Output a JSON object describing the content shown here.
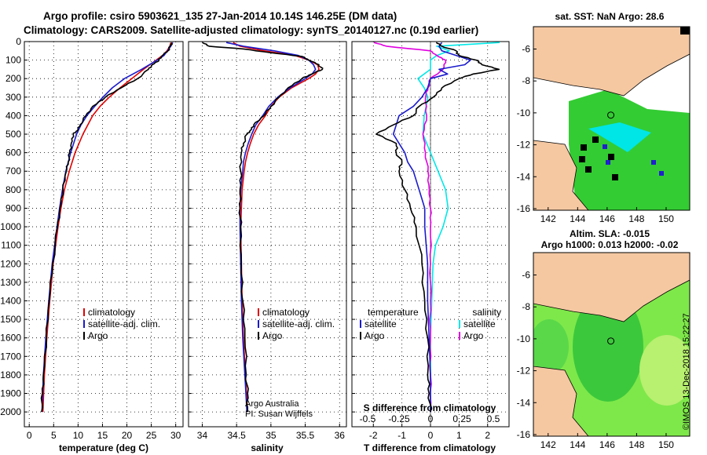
{
  "title_line1": "Argo profile: csiro 5903621_135 27-Jan-2014 10.14S 146.25E (DM data)",
  "title_line2": "Climatology: CARS2009. Satellite-adjusted climatology: synTS_20140127.nc (0.19d earlier)",
  "credit": "©IMOS 13-Dec-2018 15:22:27",
  "colors": {
    "climatology": "#e00000",
    "satellite": "#1a1acc",
    "argo": "#000000",
    "sal_clim": "#e000e0",
    "sal_sat": "#00e8e8",
    "land": "#f5c8a2",
    "ocean_green": "#33cc33",
    "sla_green": "#7ee84a"
  },
  "chart_data": [
    {
      "type": "line",
      "name": "temperature",
      "xlabel": "temperature (deg C)",
      "xlim": [
        -1,
        31.5
      ],
      "ylim": [
        0,
        2080
      ],
      "xticks": [
        "0",
        "5",
        "10",
        "15",
        "20",
        "25",
        "30"
      ],
      "xtick_values": [
        0,
        5,
        10,
        15,
        20,
        25,
        30
      ],
      "yticks": [
        "0",
        "100",
        "200",
        "300",
        "400",
        "500",
        "600",
        "700",
        "800",
        "900",
        "1000",
        "1100",
        "1200",
        "1300",
        "1400",
        "1500",
        "1600",
        "1700",
        "1800",
        "1900",
        "2000"
      ],
      "ytick_values": [
        0,
        100,
        200,
        300,
        400,
        500,
        600,
        700,
        800,
        900,
        1000,
        1100,
        1200,
        1300,
        1400,
        1500,
        1600,
        1700,
        1800,
        1900,
        2000
      ],
      "legend": [
        "climatology",
        "satellite-adj. clim.",
        "Argo"
      ],
      "series": [
        {
          "name": "climatology",
          "pressure": [
            5,
            25,
            50,
            75,
            100,
            150,
            200,
            250,
            300,
            350,
            400,
            500,
            600,
            700,
            800,
            900,
            1000,
            1200,
            1400,
            1600,
            1800,
            2000
          ],
          "values": [
            29.0,
            28.8,
            28.2,
            27.3,
            26.0,
            23.4,
            21.0,
            18.6,
            16.4,
            14.5,
            13.0,
            11.0,
            9.4,
            8.2,
            7.2,
            6.5,
            5.9,
            4.9,
            4.2,
            3.6,
            3.1,
            2.8
          ]
        },
        {
          "name": "satellite-adj. clim.",
          "pressure": [
            5,
            25,
            50,
            75,
            100,
            150,
            200,
            250,
            300,
            350,
            400,
            450,
            500,
            600,
            700,
            800,
            900,
            1000,
            1200,
            1400,
            1600,
            1800,
            2000
          ],
          "values": [
            29.4,
            29.0,
            28.3,
            27.6,
            26.2,
            23.0,
            19.5,
            17.0,
            15.1,
            13.4,
            11.8,
            10.6,
            9.7,
            8.5,
            7.5,
            6.8,
            6.2,
            5.7,
            4.7,
            4.0,
            3.4,
            2.9,
            2.6
          ]
        },
        {
          "name": "Argo",
          "pressure": [
            5,
            25,
            50,
            75,
            100,
            125,
            150,
            200,
            250,
            300,
            350,
            400,
            450,
            480,
            500,
            550,
            600,
            650,
            700,
            800,
            900,
            1000,
            1200,
            1400,
            1600,
            1800,
            1900,
            2000
          ],
          "values": [
            29.2,
            28.9,
            28.4,
            27.3,
            26.6,
            25.2,
            24.4,
            22.2,
            18.8,
            15.6,
            13.0,
            11.6,
            10.4,
            9.9,
            9.0,
            8.6,
            8.3,
            8.0,
            7.6,
            6.9,
            6.3,
            5.8,
            4.8,
            4.1,
            3.5,
            2.9,
            2.7,
            2.5
          ]
        }
      ]
    },
    {
      "type": "line",
      "name": "salinity",
      "xlabel": "salinity",
      "xlim": [
        33.8,
        36.1
      ],
      "ylim": [
        0,
        2080
      ],
      "xticks": [
        "34",
        "34.5",
        "35",
        "35.5",
        "36"
      ],
      "xtick_values": [
        34,
        34.5,
        35,
        35.5,
        36
      ],
      "legend": [
        "climatology",
        "satellite-adj. clim.",
        "Argo"
      ],
      "annotation": [
        "Argo Australia",
        "PI: Susan Wijffels"
      ],
      "series": [
        {
          "name": "climatology",
          "pressure": [
            5,
            25,
            50,
            75,
            100,
            125,
            150,
            175,
            200,
            250,
            300,
            350,
            400,
            450,
            500,
            550,
            600,
            650,
            700,
            800,
            900,
            1000,
            1200,
            1400,
            1600,
            1800,
            2000
          ],
          "values": [
            34.45,
            34.55,
            34.9,
            35.35,
            35.55,
            35.68,
            35.7,
            35.65,
            35.55,
            35.3,
            35.12,
            35.0,
            34.92,
            34.82,
            34.75,
            34.7,
            34.66,
            34.63,
            34.61,
            34.58,
            34.57,
            34.56,
            34.57,
            34.58,
            34.6,
            34.63,
            34.66
          ]
        },
        {
          "name": "satellite-adj. clim.",
          "pressure": [
            5,
            25,
            50,
            75,
            100,
            125,
            150,
            175,
            200,
            250,
            300,
            350,
            400,
            450,
            500,
            550,
            600,
            650,
            700,
            800,
            900,
            1000,
            1200,
            1400,
            1600,
            1800,
            2000
          ],
          "values": [
            34.35,
            34.6,
            35.05,
            35.4,
            35.55,
            35.62,
            35.65,
            35.6,
            35.5,
            35.28,
            35.1,
            34.97,
            34.88,
            34.78,
            34.72,
            34.67,
            34.63,
            34.6,
            34.59,
            34.56,
            34.55,
            34.55,
            34.56,
            34.57,
            34.59,
            34.62,
            34.65
          ]
        },
        {
          "name": "Argo",
          "pressure": [
            5,
            25,
            40,
            60,
            80,
            100,
            125,
            150,
            175,
            200,
            250,
            300,
            350,
            400,
            450,
            480,
            500,
            550,
            600,
            700,
            800,
            900,
            1000,
            1200,
            1400,
            1600,
            1800,
            1900,
            2000
          ],
          "values": [
            34.0,
            34.1,
            34.6,
            35.0,
            35.45,
            35.55,
            35.7,
            35.75,
            35.6,
            35.45,
            35.25,
            35.12,
            35.0,
            34.9,
            34.75,
            34.7,
            34.65,
            34.6,
            34.57,
            34.56,
            34.55,
            34.55,
            34.56,
            34.57,
            34.59,
            34.62,
            34.64,
            34.66,
            34.66
          ]
        }
      ]
    },
    {
      "type": "line",
      "name": "differences",
      "xlabel": "T difference from climatology",
      "xlabel2": "S difference from climatology",
      "xlim": [
        -2.75,
        2.75
      ],
      "xticks": [
        "-2",
        "-1",
        "0",
        "1",
        "2"
      ],
      "xtick_values": [
        -2,
        -1,
        0,
        1,
        2
      ],
      "xticks_s": [
        "-0.5",
        "-0.25",
        "0",
        "0.25",
        "0.5"
      ],
      "xtick_s_values": [
        -0.5,
        -0.25,
        0,
        0.25,
        0.5
      ],
      "legend_left": [
        "temperature",
        "satellite",
        "Argo"
      ],
      "legend_right": [
        "salinity",
        "satellite",
        "Argo"
      ],
      "series": [
        {
          "name": "T satellite",
          "pressure": [
            5,
            25,
            50,
            100,
            125,
            150,
            175,
            200,
            250,
            300,
            350,
            400,
            450,
            500,
            550,
            600,
            650,
            700,
            800,
            850,
            900,
            1000,
            1200,
            1400,
            1600,
            1800,
            2000
          ],
          "values": [
            0.4,
            0.3,
            0.4,
            1.4,
            1.2,
            0.3,
            0.6,
            0.0,
            -0.1,
            -0.3,
            -0.6,
            -1.1,
            -1.2,
            -1.3,
            -1.1,
            -0.9,
            -0.8,
            -0.6,
            -0.4,
            -0.3,
            -0.2,
            -0.2,
            -0.1,
            -0.1,
            -0.05,
            0.0,
            0.0
          ]
        },
        {
          "name": "T Argo",
          "pressure": [
            5,
            25,
            50,
            75,
            100,
            125,
            150,
            175,
            200,
            250,
            300,
            350,
            400,
            450,
            500,
            550,
            600,
            650,
            700,
            800,
            900,
            1000,
            1200,
            1400,
            1600,
            1800,
            1900,
            2000
          ],
          "values": [
            0.2,
            0.4,
            0.9,
            1.0,
            1.6,
            1.8,
            2.4,
            1.5,
            1.0,
            0.4,
            0.1,
            -0.4,
            -0.6,
            -1.3,
            -1.9,
            -1.2,
            -1.2,
            -1.0,
            -1.1,
            -0.9,
            -0.7,
            -0.5,
            -0.3,
            -0.2,
            -0.1,
            -0.1,
            -0.05,
            0.0
          ]
        },
        {
          "name": "S satellite",
          "pressure": [
            5,
            25,
            50,
            75,
            100,
            150,
            200,
            250,
            300,
            400,
            500,
            600,
            700,
            800,
            900,
            1000,
            1100,
            1200,
            1400,
            1600,
            1800,
            2000
          ],
          "values": [
            0.55,
            0.05,
            0.15,
            0.05,
            0.0,
            0.0,
            -0.1,
            -0.05,
            -0.02,
            -0.05,
            -0.06,
            0.0,
            0.06,
            0.12,
            0.14,
            0.1,
            0.04,
            0.02,
            0.01,
            0.0,
            0.0,
            0.0
          ]
        },
        {
          "name": "S Argo",
          "pressure": [
            5,
            25,
            50,
            75,
            100,
            150,
            200,
            250,
            300,
            400,
            500,
            600,
            700,
            800,
            900,
            1000,
            1200,
            1400,
            1600,
            1800,
            2000
          ],
          "values": [
            -0.45,
            -0.35,
            0.0,
            0.05,
            0.12,
            0.1,
            0.0,
            -0.02,
            -0.04,
            -0.03,
            -0.06,
            -0.04,
            -0.02,
            -0.01,
            0.0,
            0.0,
            0.0,
            0.0,
            0.0,
            0.0,
            0.0
          ]
        }
      ]
    },
    {
      "type": "heatmap",
      "name": "sst-map",
      "title": "sat. SST: NaN Argo: 28.6",
      "xticks": [
        "142",
        "144",
        "146",
        "148",
        "150"
      ],
      "xtick_values": [
        142,
        144,
        146,
        148,
        150
      ],
      "yticks": [
        "-6",
        "-8",
        "-10",
        "-12",
        "-14",
        "-16"
      ],
      "ytick_values": [
        -6,
        -8,
        -10,
        -12,
        -14,
        -16
      ],
      "xlim": [
        141.0,
        151.6
      ],
      "ylim": [
        -16.1,
        -4.6
      ],
      "marker": {
        "lon": 146.25,
        "lat": -10.14
      }
    },
    {
      "type": "heatmap",
      "name": "sla-map",
      "title1": "Altim. SLA: -0.015",
      "title2": "Argo h1000: 0.013 h2000: -0.02",
      "xticks": [
        "142",
        "144",
        "146",
        "148",
        "150"
      ],
      "xtick_values": [
        142,
        144,
        146,
        148,
        150
      ],
      "yticks": [
        "-6",
        "-8",
        "-10",
        "-12",
        "-14",
        "-16"
      ],
      "ytick_values": [
        -6,
        -8,
        -10,
        -12,
        -14,
        -16
      ],
      "xlim": [
        141.0,
        151.6
      ],
      "ylim": [
        -16.1,
        -4.6
      ],
      "marker": {
        "lon": 146.25,
        "lat": -10.14
      }
    }
  ]
}
